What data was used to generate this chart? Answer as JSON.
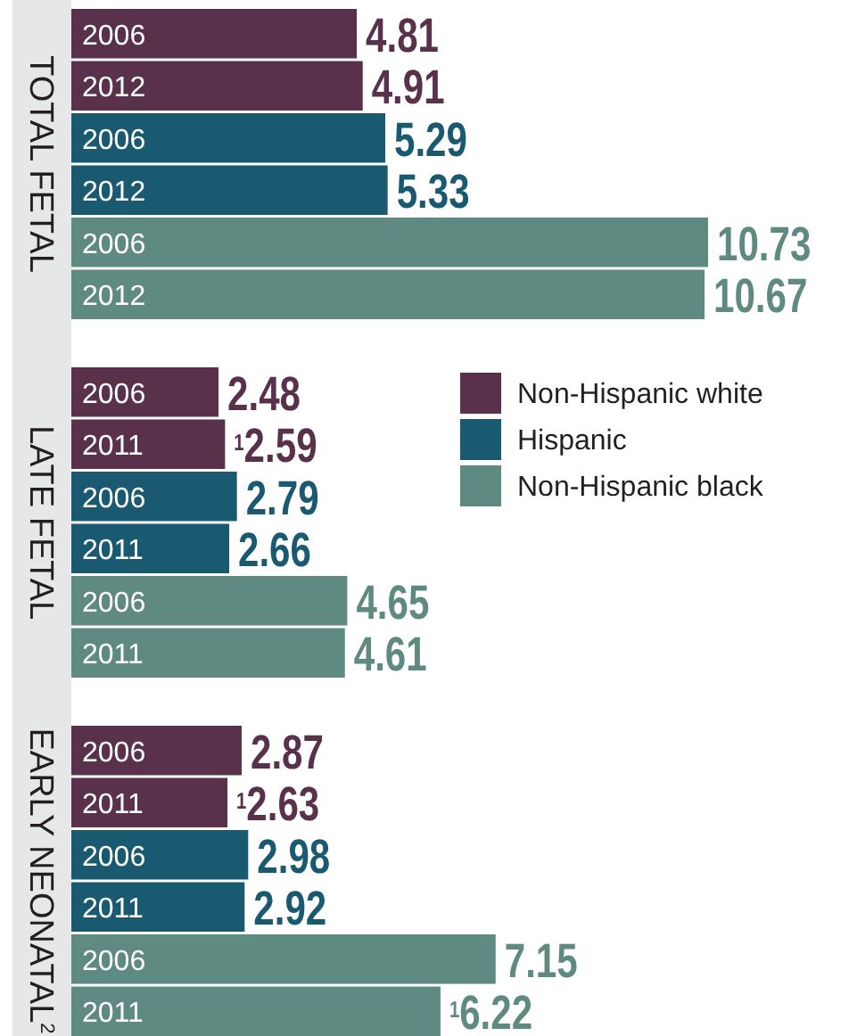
{
  "chart_data": [
    {
      "type": "bar",
      "orientation": "horizontal",
      "ylabel": "TOTAL FETAL",
      "categories": [
        "2006",
        "2012",
        "2006",
        "2012",
        "2006",
        "2012"
      ],
      "legend": false,
      "series": [
        {
          "color": "#5a314b",
          "values": [
            4.81,
            4.91,
            null,
            null,
            null,
            null
          ],
          "value_labels": [
            "4.81",
            "4.91",
            null,
            null,
            null,
            null
          ]
        },
        {
          "color": "#1a5a70",
          "values": [
            null,
            null,
            5.29,
            5.33,
            null,
            null
          ],
          "value_labels": [
            null,
            null,
            "5.29",
            "5.33",
            null,
            null
          ]
        },
        {
          "color": "#5f8a82",
          "values": [
            null,
            null,
            null,
            null,
            10.73,
            10.67
          ],
          "value_labels": [
            null,
            null,
            null,
            null,
            "10.73",
            "10.67"
          ]
        }
      ]
    },
    {
      "type": "bar",
      "orientation": "horizontal",
      "ylabel": "LATE FETAL",
      "categories": [
        "2006",
        "2011",
        "2006",
        "2011",
        "2006",
        "2011"
      ],
      "legend": "top right",
      "series": [
        {
          "name": "Non-Hispanic white",
          "color": "#5a314b",
          "values": [
            2.48,
            2.59,
            null,
            null,
            null,
            null
          ],
          "value_labels": [
            "2.48",
            "$^{1}$2.59",
            null,
            null,
            null,
            null
          ]
        },
        {
          "name": "Hispanic",
          "color": "#1a5a70",
          "values": [
            null,
            null,
            2.79,
            2.66,
            null,
            null
          ],
          "value_labels": [
            null,
            null,
            "2.79",
            "2.66",
            null,
            null
          ]
        },
        {
          "name": "Non-Hispanic black",
          "color": "#5f8a82",
          "values": [
            null,
            null,
            null,
            null,
            4.65,
            4.61
          ],
          "value_labels": [
            null,
            null,
            null,
            null,
            "4.65",
            "4.61"
          ]
        }
      ]
    },
    {
      "type": "bar",
      "orientation": "horizontal",
      "ylabel": "EARLY NEONATAL$^{2}$",
      "categories": [
        "2006",
        "2011",
        "2006",
        "2011",
        "2006",
        "2011"
      ],
      "legend": false,
      "series": [
        {
          "color": "#5a314b",
          "values": [
            2.87,
            2.63,
            null,
            null,
            null,
            null
          ],
          "value_labels": [
            "2.87",
            "$^{1}$2.63",
            null,
            null,
            null,
            null
          ]
        },
        {
          "color": "#1a5a70",
          "values": [
            null,
            null,
            2.98,
            2.92,
            null,
            null
          ],
          "value_labels": [
            null,
            null,
            "2.98",
            "2.92",
            null,
            null
          ]
        },
        {
          "color": "#5f8a82",
          "values": [
            null,
            null,
            null,
            null,
            7.15,
            6.22
          ],
          "value_labels": [
            null,
            null,
            null,
            null,
            "7.15",
            "$^{1}$6.22"
          ]
        }
      ]
    }
  ]
}
